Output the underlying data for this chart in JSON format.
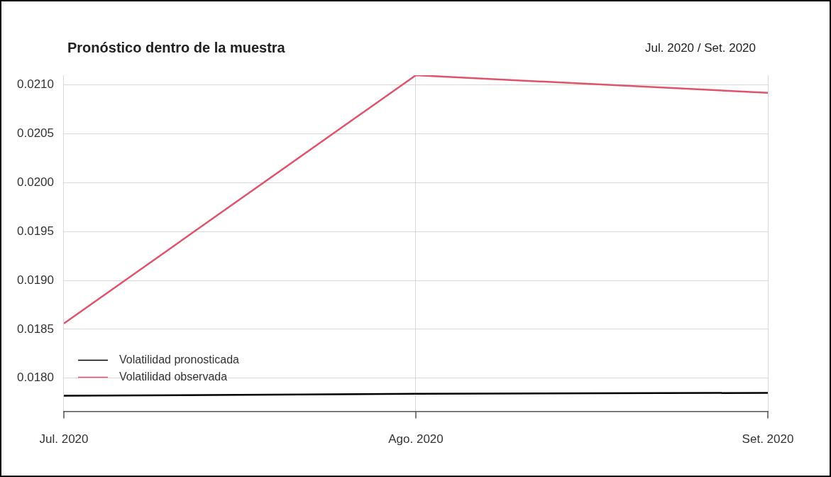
{
  "chart_data": {
    "type": "line",
    "title": "Pronóstico dentro de la muestra",
    "subtitle": "Jul. 2020 / Set. 2020",
    "x": [
      "2020-07",
      "2020-08",
      "2020-09"
    ],
    "series": [
      {
        "name": "Volatilidad pronosticada",
        "color": "#000000",
        "values": [
          0.01782,
          0.01784,
          0.01785
        ]
      },
      {
        "name": "Volatilidad observada",
        "color": "#df536b",
        "values": [
          0.01856,
          0.0211,
          0.02092
        ]
      }
    ],
    "xlim": [
      "2020-07",
      "2020-09"
    ],
    "xticks": [
      {
        "value": "2020-07",
        "label": "Jul. 2020"
      },
      {
        "value": "2020-08",
        "label": "Ago. 2020"
      },
      {
        "value": "2020-09",
        "label": "Set. 2020"
      }
    ],
    "ylim": [
      0.01766,
      0.0211
    ],
    "yticks": [
      {
        "value": 0.018,
        "label": "0.0180"
      },
      {
        "value": 0.0185,
        "label": "0.0185"
      },
      {
        "value": 0.019,
        "label": "0.0190"
      },
      {
        "value": 0.0195,
        "label": "0.0195"
      },
      {
        "value": 0.02,
        "label": "0.0200"
      },
      {
        "value": 0.0205,
        "label": "0.0205"
      },
      {
        "value": 0.021,
        "label": "0.0210"
      }
    ],
    "grid": true,
    "legend": "bottom left",
    "marker": "none",
    "line_style": "solid"
  }
}
